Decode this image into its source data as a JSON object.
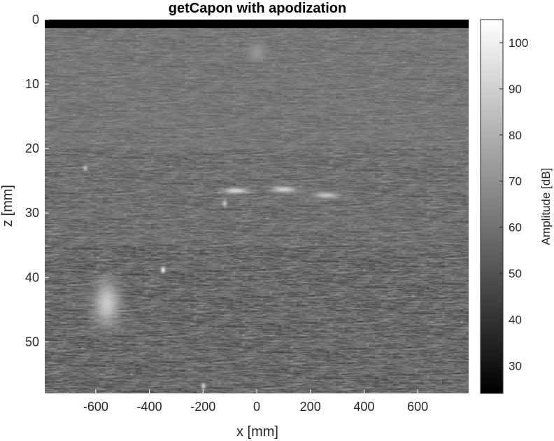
{
  "chart_data": {
    "type": "heatmap",
    "title": "getCapon with apodization",
    "xlabel": "x [mm]",
    "ylabel": "z [mm]",
    "xlim": [
      -790,
      790
    ],
    "ylim": [
      58,
      0
    ],
    "y_axis_reversed": true,
    "xticks": [
      -600,
      -400,
      -200,
      0,
      200,
      400,
      600
    ],
    "xtick_labels": [
      "-600",
      "-400",
      "-200",
      "0",
      "200",
      "400",
      "600"
    ],
    "yticks": [
      0,
      10,
      20,
      30,
      40,
      50
    ],
    "ytick_labels": [
      "0",
      "10",
      "20",
      "30",
      "40",
      "50"
    ],
    "colormap": "gray",
    "colorbar": {
      "label": "Amplitude [dB]",
      "range": [
        24,
        105
      ],
      "ticks": [
        30,
        40,
        50,
        60,
        70,
        80,
        90,
        100
      ],
      "tick_labels": [
        "30",
        "40",
        "50",
        "60",
        "70",
        "80",
        "90",
        "100"
      ],
      "placement": "right"
    },
    "grid": false,
    "background_speckle_mean_db": {
      "near_field_z_0_20": 62,
      "mid_field_z_20_35": 60,
      "far_field_z_35_58": 58
    },
    "bright_features": [
      {
        "kind": "blob",
        "x": 0,
        "z": 5,
        "amplitude_db": 72
      },
      {
        "kind": "bright_region",
        "x": -560,
        "z": 44,
        "amplitude_db": 88
      },
      {
        "kind": "point",
        "x": -350,
        "z": 38.8,
        "amplitude_db": 100
      },
      {
        "kind": "point",
        "x": -640,
        "z": 23,
        "amplitude_db": 85
      },
      {
        "kind": "line_segment",
        "x": -80,
        "z": 26.5,
        "amplitude_db": 92
      },
      {
        "kind": "line_segment",
        "x": 100,
        "z": 26.3,
        "amplitude_db": 90
      },
      {
        "kind": "line_segment",
        "x": 260,
        "z": 27.2,
        "amplitude_db": 86
      },
      {
        "kind": "point",
        "x": -120,
        "z": 28.5,
        "amplitude_db": 88
      },
      {
        "kind": "point",
        "x": -200,
        "z": 56.8,
        "amplitude_db": 90
      }
    ],
    "top_band": {
      "z_range": [
        0,
        1.3
      ],
      "amplitude_db": 24
    }
  }
}
